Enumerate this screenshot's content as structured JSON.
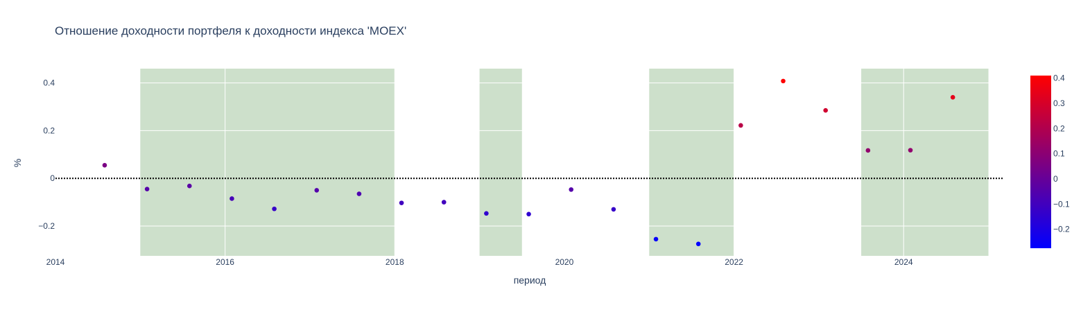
{
  "chart_data": {
    "type": "scatter",
    "title": "Отношение доходности портфеля к доходности индекса 'MOEX'",
    "xlabel": "период",
    "ylabel": "%",
    "x_range": [
      2014.0,
      2025.2
    ],
    "y_range": [
      -0.325,
      0.46
    ],
    "x_ticks": [
      {
        "value": 2014,
        "label": "2014"
      },
      {
        "value": 2016,
        "label": "2016"
      },
      {
        "value": 2018,
        "label": "2018"
      },
      {
        "value": 2020,
        "label": "2020"
      },
      {
        "value": 2022,
        "label": "2022"
      },
      {
        "value": 2024,
        "label": "2024"
      }
    ],
    "y_ticks": [
      {
        "value": 0.4,
        "label": "0.4"
      },
      {
        "value": 0.2,
        "label": "0.2"
      },
      {
        "value": 0,
        "label": "0"
      },
      {
        "value": -0.2,
        "label": "−0.2"
      }
    ],
    "grid": true,
    "reference_line": {
      "y": 0,
      "style": "dotted",
      "color": "#000000"
    },
    "shaded_periods": [
      {
        "start": 2015.0,
        "end": 2018.0
      },
      {
        "start": 2019.0,
        "end": 2019.5
      },
      {
        "start": 2021.0,
        "end": 2022.0
      },
      {
        "start": 2023.5,
        "end": 2025.0
      }
    ],
    "shade_color": "#cde0cb",
    "colorscale": {
      "min": -0.275,
      "max": 0.41,
      "low_color": "#0000ff",
      "high_color": "#ff0000"
    },
    "colorbar_ticks": [
      {
        "value": 0.4,
        "label": "0.4"
      },
      {
        "value": 0.3,
        "label": "0.3"
      },
      {
        "value": 0.2,
        "label": "0.2"
      },
      {
        "value": 0.1,
        "label": "0.1"
      },
      {
        "value": 0,
        "label": "0"
      },
      {
        "value": -0.1,
        "label": "−0.1"
      },
      {
        "value": -0.2,
        "label": "−0.2"
      }
    ],
    "points": [
      {
        "x": 2014.58,
        "y": 0.055
      },
      {
        "x": 2015.08,
        "y": -0.045
      },
      {
        "x": 2015.58,
        "y": -0.032
      },
      {
        "x": 2016.08,
        "y": -0.085
      },
      {
        "x": 2016.58,
        "y": -0.128
      },
      {
        "x": 2017.08,
        "y": -0.05
      },
      {
        "x": 2017.58,
        "y": -0.065
      },
      {
        "x": 2018.08,
        "y": -0.103
      },
      {
        "x": 2018.58,
        "y": -0.1
      },
      {
        "x": 2019.08,
        "y": -0.147
      },
      {
        "x": 2019.58,
        "y": -0.15
      },
      {
        "x": 2020.08,
        "y": -0.047
      },
      {
        "x": 2020.58,
        "y": -0.13
      },
      {
        "x": 2021.08,
        "y": -0.255
      },
      {
        "x": 2021.58,
        "y": -0.275
      },
      {
        "x": 2022.08,
        "y": 0.222
      },
      {
        "x": 2022.58,
        "y": 0.408
      },
      {
        "x": 2023.08,
        "y": 0.285
      },
      {
        "x": 2023.58,
        "y": 0.117
      },
      {
        "x": 2024.08,
        "y": 0.118
      },
      {
        "x": 2024.58,
        "y": 0.34
      }
    ]
  }
}
